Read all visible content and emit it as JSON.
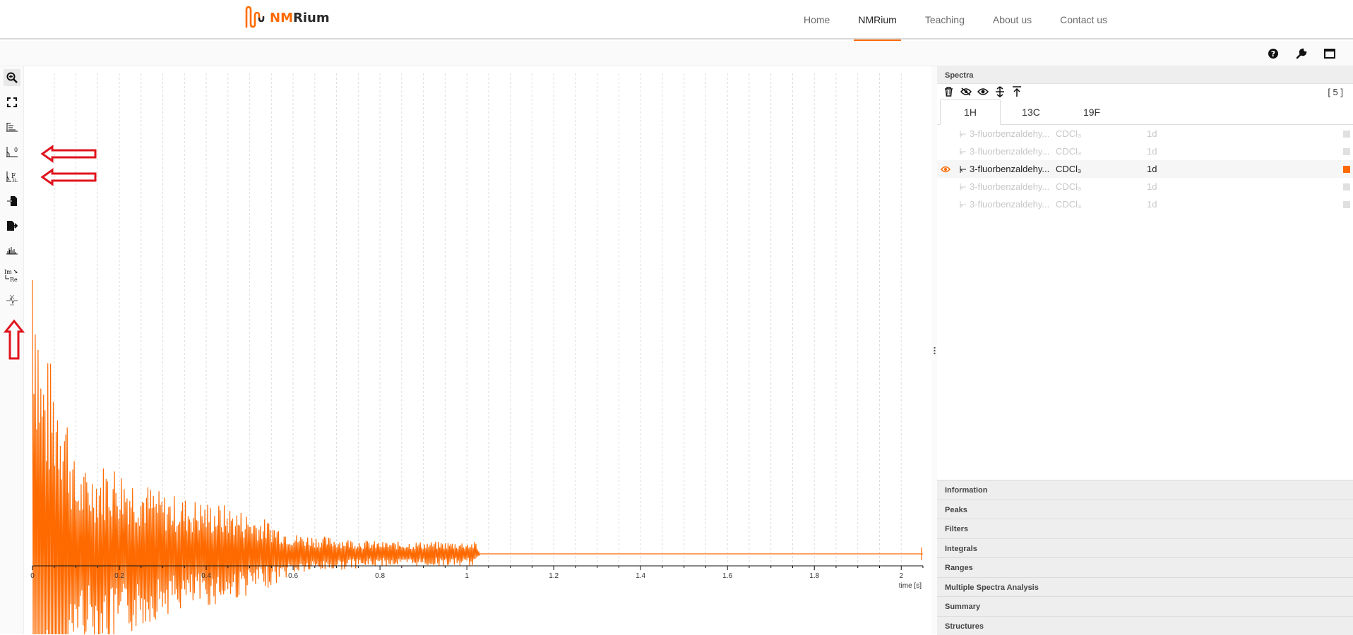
{
  "nav": {
    "logo_text_a": "NM",
    "logo_text_b": "Rium",
    "links": [
      {
        "label": "Home",
        "active": false
      },
      {
        "label": "NMRium",
        "active": true
      },
      {
        "label": "Teaching",
        "active": false
      },
      {
        "label": "About us",
        "active": false
      },
      {
        "label": "Contact us",
        "active": false
      }
    ]
  },
  "topbar_icons": [
    "help-icon",
    "wrench-icon",
    "fullscreen-icon"
  ],
  "toolbar": {
    "tools": [
      "zoom-icon",
      "full-spectrum-icon",
      "apodization-icon",
      "zero-filling-icon",
      "fourier-transform-icon",
      "import-icon",
      "export-icon",
      "baseline-icon",
      "real-imaginary-icon",
      "digital-filter-icon"
    ]
  },
  "chart_data": {
    "type": "line",
    "xlabel": "time [s]",
    "xlim": [
      0,
      2.05
    ],
    "x_ticks": [
      "0",
      "0.2",
      "0.4",
      "0.6",
      "0.8",
      "1",
      "1.2",
      "1.4",
      "1.6",
      "1.8",
      "2"
    ],
    "color": "#ff6a00",
    "description_signal": "FID decay; high-amplitude oscillation near 0, decaying until ~1.02 s, flat afterwards until 2.05 s",
    "envelope": [
      {
        "x": 0.0,
        "amp": 1.0
      },
      {
        "x": 0.02,
        "amp": 0.5
      },
      {
        "x": 0.07,
        "amp": 0.45
      },
      {
        "x": 0.1,
        "amp": 0.2
      },
      {
        "x": 0.18,
        "amp": 0.23
      },
      {
        "x": 0.3,
        "amp": 0.15
      },
      {
        "x": 0.45,
        "amp": 0.12
      },
      {
        "x": 0.55,
        "amp": 0.08
      },
      {
        "x": 0.6,
        "amp": 0.05
      },
      {
        "x": 0.8,
        "amp": 0.03
      },
      {
        "x": 1.02,
        "amp": 0.03
      },
      {
        "x": 1.03,
        "amp": 0.0
      },
      {
        "x": 2.05,
        "amp": 0.0
      }
    ],
    "grid": true
  },
  "annotations": [
    "arrow-zero-filling",
    "arrow-fourier-transform",
    "arrow-digital-filter"
  ],
  "panel": {
    "spectra_title": "Spectra",
    "spectra_count": "[ 5 ]",
    "tabs": [
      {
        "label": "1H",
        "active": true
      },
      {
        "label": "13C",
        "active": false
      },
      {
        "label": "19F",
        "active": false
      }
    ],
    "rows": [
      {
        "name": "3-fluorbenzaldehy...",
        "solvent": "CDCl₃",
        "dim": "1d",
        "active": false,
        "color": "#e0e0e0"
      },
      {
        "name": "3-fluorbenzaldehy...",
        "solvent": "CDCl₃",
        "dim": "1d",
        "active": false,
        "color": "#e0e0e0"
      },
      {
        "name": "3-fluorbenzaldehy...",
        "solvent": "CDCl₃",
        "dim": "1d",
        "active": true,
        "color": "#ff6a00"
      },
      {
        "name": "3-fluorbenzaldehy...",
        "solvent": "CDCl₃",
        "dim": "1d",
        "active": false,
        "color": "#e0e0e0"
      },
      {
        "name": "3-fluorbenzaldehy...",
        "solvent": "CDCl₃",
        "dim": "1d",
        "active": false,
        "color": "#e0e0e0"
      }
    ],
    "accordion": [
      "Information",
      "Peaks",
      "Filters",
      "Integrals",
      "Ranges",
      "Multiple Spectra Analysis",
      "Summary",
      "Structures"
    ]
  }
}
